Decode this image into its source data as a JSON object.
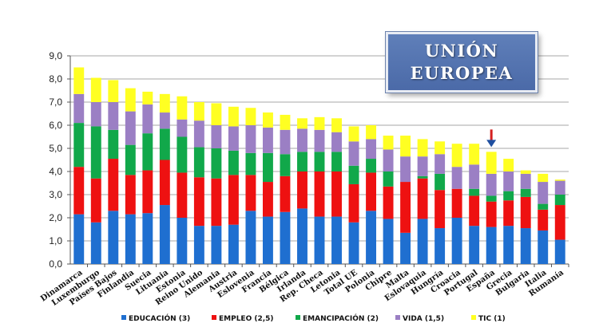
{
  "chart_data": {
    "type": "bar",
    "stacked": true,
    "title_lines": [
      "UNIÓN",
      "EUROPEA"
    ],
    "xlabel": "",
    "ylabel": "",
    "ylim": [
      0,
      9
    ],
    "yticks": [
      "0,0",
      "1,0",
      "2,0",
      "3,0",
      "4,0",
      "5,0",
      "6,0",
      "7,0",
      "8,0",
      "9,0"
    ],
    "grid": true,
    "legend_position": "bottom",
    "marker": {
      "category": "España",
      "color": "#1f4fa0"
    },
    "categories": [
      "Dinamarca",
      "Luxemburgo",
      "Países Bajos",
      "Finlandia",
      "Suecia",
      "Lituania",
      "Estonia",
      "Reino Unido",
      "Alemania",
      "Austria",
      "Eslovenia",
      "Francia",
      "Bélgica",
      "Irlanda",
      "Rep. Checa",
      "Letonia",
      "Total UE",
      "Polonia",
      "Chipre",
      "Malta",
      "Eslovaquia",
      "Hungría",
      "Croacia",
      "Portugal",
      "España",
      "Grecia",
      "Bulgaria",
      "Italia",
      "Rumanía"
    ],
    "series": [
      {
        "name": "EDUCACIÓN (3)",
        "color": "#1f6fd0",
        "values": [
          2.15,
          1.8,
          2.3,
          2.15,
          2.2,
          2.55,
          2.0,
          1.65,
          1.65,
          1.7,
          2.3,
          2.05,
          2.25,
          2.4,
          2.05,
          2.05,
          1.8,
          2.3,
          1.95,
          1.35,
          1.95,
          1.55,
          2.0,
          1.65,
          1.6,
          1.65,
          1.55,
          1.45,
          1.05
        ]
      },
      {
        "name": "EMPLEO (2,5)",
        "color": "#ee1111",
        "values": [
          2.05,
          1.9,
          2.25,
          1.7,
          1.85,
          1.95,
          1.95,
          2.1,
          2.05,
          2.15,
          1.55,
          1.5,
          1.55,
          1.6,
          1.95,
          1.95,
          1.65,
          1.65,
          1.4,
          2.2,
          1.75,
          1.65,
          1.25,
          1.3,
          1.1,
          1.1,
          1.35,
          0.9,
          1.5
        ]
      },
      {
        "name": "EMANCIPACIÓN (2)",
        "color": "#11a84a",
        "values": [
          1.9,
          2.25,
          1.25,
          1.3,
          1.6,
          1.35,
          1.55,
          1.3,
          1.3,
          1.05,
          0.95,
          1.25,
          0.95,
          0.85,
          0.85,
          0.85,
          0.8,
          0.6,
          0.65,
          0.0,
          0.1,
          0.7,
          0.0,
          0.3,
          0.25,
          0.4,
          0.35,
          0.25,
          0.45
        ]
      },
      {
        "name": "VIDA (1,5)",
        "color": "#9b7fc4",
        "values": [
          1.25,
          1.05,
          1.2,
          1.45,
          1.25,
          0.7,
          0.75,
          1.15,
          1.0,
          1.05,
          1.2,
          1.1,
          1.05,
          1.0,
          0.95,
          0.85,
          1.05,
          0.85,
          0.95,
          1.1,
          0.85,
          0.85,
          0.95,
          1.05,
          0.95,
          0.85,
          0.65,
          0.95,
          0.6
        ]
      },
      {
        "name": "TIC (1)",
        "color": "#ffff22",
        "values": [
          1.15,
          1.05,
          0.95,
          1.0,
          0.55,
          0.8,
          1.0,
          0.8,
          0.95,
          0.85,
          0.75,
          0.65,
          0.65,
          0.45,
          0.55,
          0.6,
          0.65,
          0.6,
          0.6,
          0.9,
          0.75,
          0.55,
          1.0,
          0.9,
          0.95,
          0.55,
          0.15,
          0.35,
          0.05
        ]
      }
    ]
  }
}
